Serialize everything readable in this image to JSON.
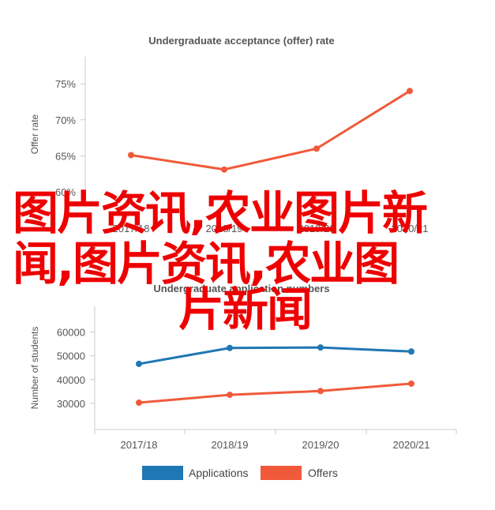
{
  "chart_data": [
    {
      "type": "line",
      "title": "Undergraduate acceptance (offer) rate",
      "xlabel": "",
      "ylabel": "Offer rate",
      "categories": [
        "2017/18",
        "2018/19",
        "2019/20",
        "2020/21"
      ],
      "yticks": [
        "60%",
        "65%",
        "70%",
        "75%"
      ],
      "ylim": [
        60,
        76
      ],
      "grid": false,
      "series": [
        {
          "values": [
            65.1,
            63.1,
            66.0,
            74.0
          ],
          "color": "#f05a3b"
        }
      ]
    },
    {
      "type": "line",
      "title": "Undergraduate application numbers",
      "xlabel": "",
      "ylabel": "Number of students",
      "categories": [
        "2017/18",
        "2018/19",
        "2019/20",
        "2020/21"
      ],
      "yticks": [
        "30000",
        "40000",
        "50000",
        "60000"
      ],
      "ylim": [
        26000,
        64500
      ],
      "grid": false,
      "legend": "bottom",
      "series": [
        {
          "name": "Applications",
          "values": [
            46600,
            53300,
            53500,
            51800
          ],
          "color": "#1f77b4"
        },
        {
          "name": "Offers",
          "values": [
            30300,
            33600,
            35200,
            38300
          ],
          "color": "#f05a3b"
        }
      ]
    }
  ],
  "overlay": {
    "line1": "图片资讯,农业图片新",
    "line2": "闻,图片资讯,农业图",
    "line3": "片新闻"
  }
}
